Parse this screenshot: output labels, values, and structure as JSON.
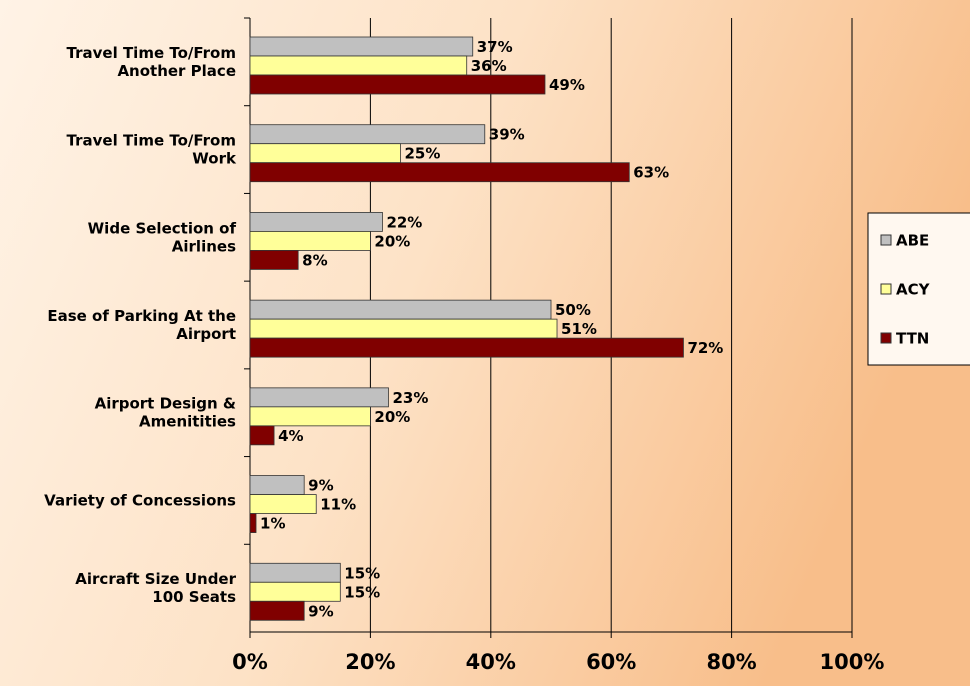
{
  "chart_data": {
    "type": "hbar",
    "categories": [
      "Travel Time To/From\nAnother Place",
      "Travel Time To/From\nWork",
      "Wide Selection of\nAirlines",
      "Ease of Parking At the\nAirport",
      "Airport Design &\nAmenitities",
      "Variety of Concessions",
      "Aircraft Size Under\n100 Seats"
    ],
    "series": [
      {
        "name": "ABE",
        "color": "#c0c0c0",
        "values": [
          37,
          39,
          22,
          50,
          23,
          9,
          15
        ],
        "value_labels": [
          "37%",
          "39%",
          "22%",
          "50%",
          "23%",
          "9%",
          "15%"
        ]
      },
      {
        "name": "ACY",
        "color": "#ffff99",
        "values": [
          36,
          25,
          20,
          51,
          20,
          11,
          15
        ],
        "value_labels": [
          "36%",
          "25%",
          "20%",
          "51%",
          "20%",
          "11%",
          "15%"
        ]
      },
      {
        "name": "TTN",
        "color": "#800000",
        "values": [
          49,
          63,
          8,
          72,
          4,
          1,
          9
        ],
        "value_labels": [
          "49%",
          "63%",
          "8%",
          "72%",
          "4%",
          "1%",
          "9%"
        ]
      }
    ],
    "xlim": [
      0,
      100
    ],
    "xticks": [
      {
        "value": 0,
        "label": "0%"
      },
      {
        "value": 20,
        "label": "20%"
      },
      {
        "value": 40,
        "label": "40%"
      },
      {
        "value": 60,
        "label": "60%"
      },
      {
        "value": 80,
        "label": "80%"
      },
      {
        "value": 100,
        "label": "100%"
      }
    ],
    "grid": true,
    "legend": "right"
  }
}
